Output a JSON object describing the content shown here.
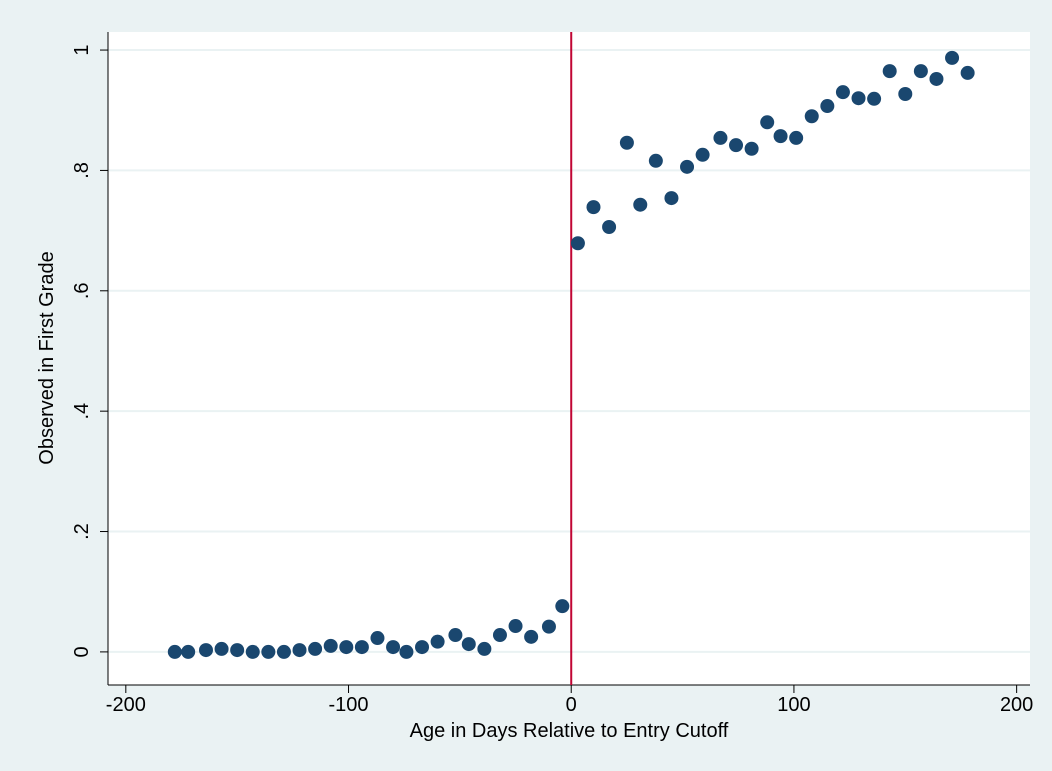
{
  "chart_data": {
    "type": "scatter",
    "x_label": "Age in Days Relative to Entry Cutoff",
    "y_label": "Observed in First Grade",
    "x": [
      -178,
      -172,
      -164,
      -157,
      -150,
      -143,
      -136,
      -129,
      -122,
      -115,
      -108,
      -101,
      -94,
      -87,
      -80,
      -74,
      -67,
      -60,
      -52,
      -46,
      -39,
      -32,
      -25,
      -18,
      -10,
      -4,
      3,
      10,
      17,
      25,
      31,
      38,
      45,
      52,
      59,
      67,
      74,
      81,
      88,
      94,
      101,
      108,
      115,
      122,
      129,
      136,
      143,
      150,
      157,
      164,
      171,
      178
    ],
    "values": [
      0.0,
      0.0,
      0.003,
      0.005,
      0.003,
      0.0,
      0.0,
      0.0,
      0.003,
      0.005,
      0.01,
      0.008,
      0.008,
      0.023,
      0.008,
      0.0,
      0.008,
      0.017,
      0.028,
      0.013,
      0.005,
      0.028,
      0.043,
      0.025,
      0.042,
      0.076,
      0.679,
      0.739,
      0.706,
      0.846,
      0.743,
      0.816,
      0.754,
      0.806,
      0.826,
      0.854,
      0.842,
      0.836,
      0.88,
      0.857,
      0.854,
      0.89,
      0.907,
      0.93,
      0.92,
      0.919,
      0.965,
      0.927,
      0.965,
      0.952,
      0.987,
      0.962
    ],
    "color": "#1a476f",
    "xlim": [
      -208,
      206
    ],
    "ylim": [
      -0.055,
      1.03
    ],
    "xticks": [
      -200,
      -100,
      0,
      100,
      200
    ],
    "yticks": [
      0,
      {
        "value": 0.2,
        "label": ".2"
      },
      {
        "value": 0.4,
        "label": ".4"
      },
      {
        "value": 0.6,
        "label": ".6"
      },
      {
        "value": 0.8,
        "label": ".8"
      },
      1
    ],
    "grid": true,
    "reference_line": {
      "x": 0,
      "color": "#c10534"
    }
  }
}
